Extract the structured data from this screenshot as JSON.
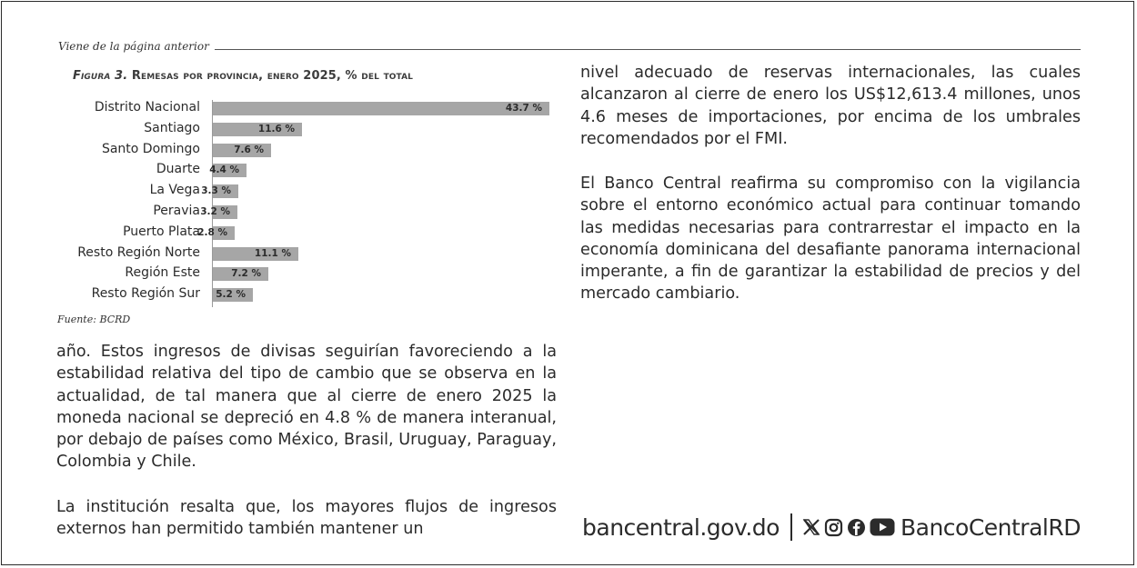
{
  "header": {
    "continued": "Viene de la página anterior"
  },
  "figure": {
    "number": "Figura 3.",
    "title": "Remesas por provincia, enero 2025, % del total",
    "source": "Fuente: BCRD"
  },
  "chart_data": {
    "type": "bar",
    "orientation": "horizontal",
    "title": "Figura 3. Remesas por provincia, enero 2025, % del total",
    "categories": [
      "Distrito Nacional",
      "Santiago",
      "Santo Domingo",
      "Duarte",
      "La Vega",
      "Peravia",
      "Puerto Plata",
      "Resto Región Norte",
      "Región Este",
      "Resto Región Sur"
    ],
    "values": [
      43.7,
      11.6,
      7.6,
      4.4,
      3.3,
      3.2,
      2.8,
      11.1,
      7.2,
      5.2
    ],
    "value_labels": [
      "43.7 %",
      "11.6 %",
      "7.6 %",
      "4.4 %",
      "3.3 %",
      "3.2 %",
      "2.8 %",
      "11.1 %",
      "7.2 %",
      "5.2 %"
    ],
    "xlim": [
      0,
      43.7
    ],
    "grid": false,
    "bar_color": "#a6a6a6"
  },
  "left_column": {
    "para1": "año. Estos ingresos de divisas seguirían favoreciendo a la estabilidad relativa del tipo de cambio que se observa en la actualidad, de tal manera que al cierre de enero 2025 la moneda nacional se depreció en 4.8 % de manera interanual, por debajo de países como México, Brasil, Uruguay, Paraguay, Colombia y Chile.",
    "para2": "La institución resalta que, los mayores flujos de ingresos externos han permitido también mantener un"
  },
  "right_column": {
    "para1": "nivel adecuado de reservas internacionales, las cuales alcanzaron al cierre de enero los US$12,613.4 millones, unos 4.6 meses de importaciones, por encima de los umbrales recomendados por el FMI.",
    "para2": "El Banco Central reafirma su compromiso con la vigilancia sobre el entorno económico actual para continuar tomando las medidas necesarias para contrarrestar el impacto en la economía dominicana del desafiante panorama internacional imperante, a fin de garantizar la estabilidad de precios y del mercado cambiario."
  },
  "footer": {
    "website": "bancentral.gov.do",
    "icons": [
      "x-icon",
      "instagram-icon",
      "facebook-icon",
      "youtube-icon"
    ],
    "handle": "BancoCentralRD"
  }
}
